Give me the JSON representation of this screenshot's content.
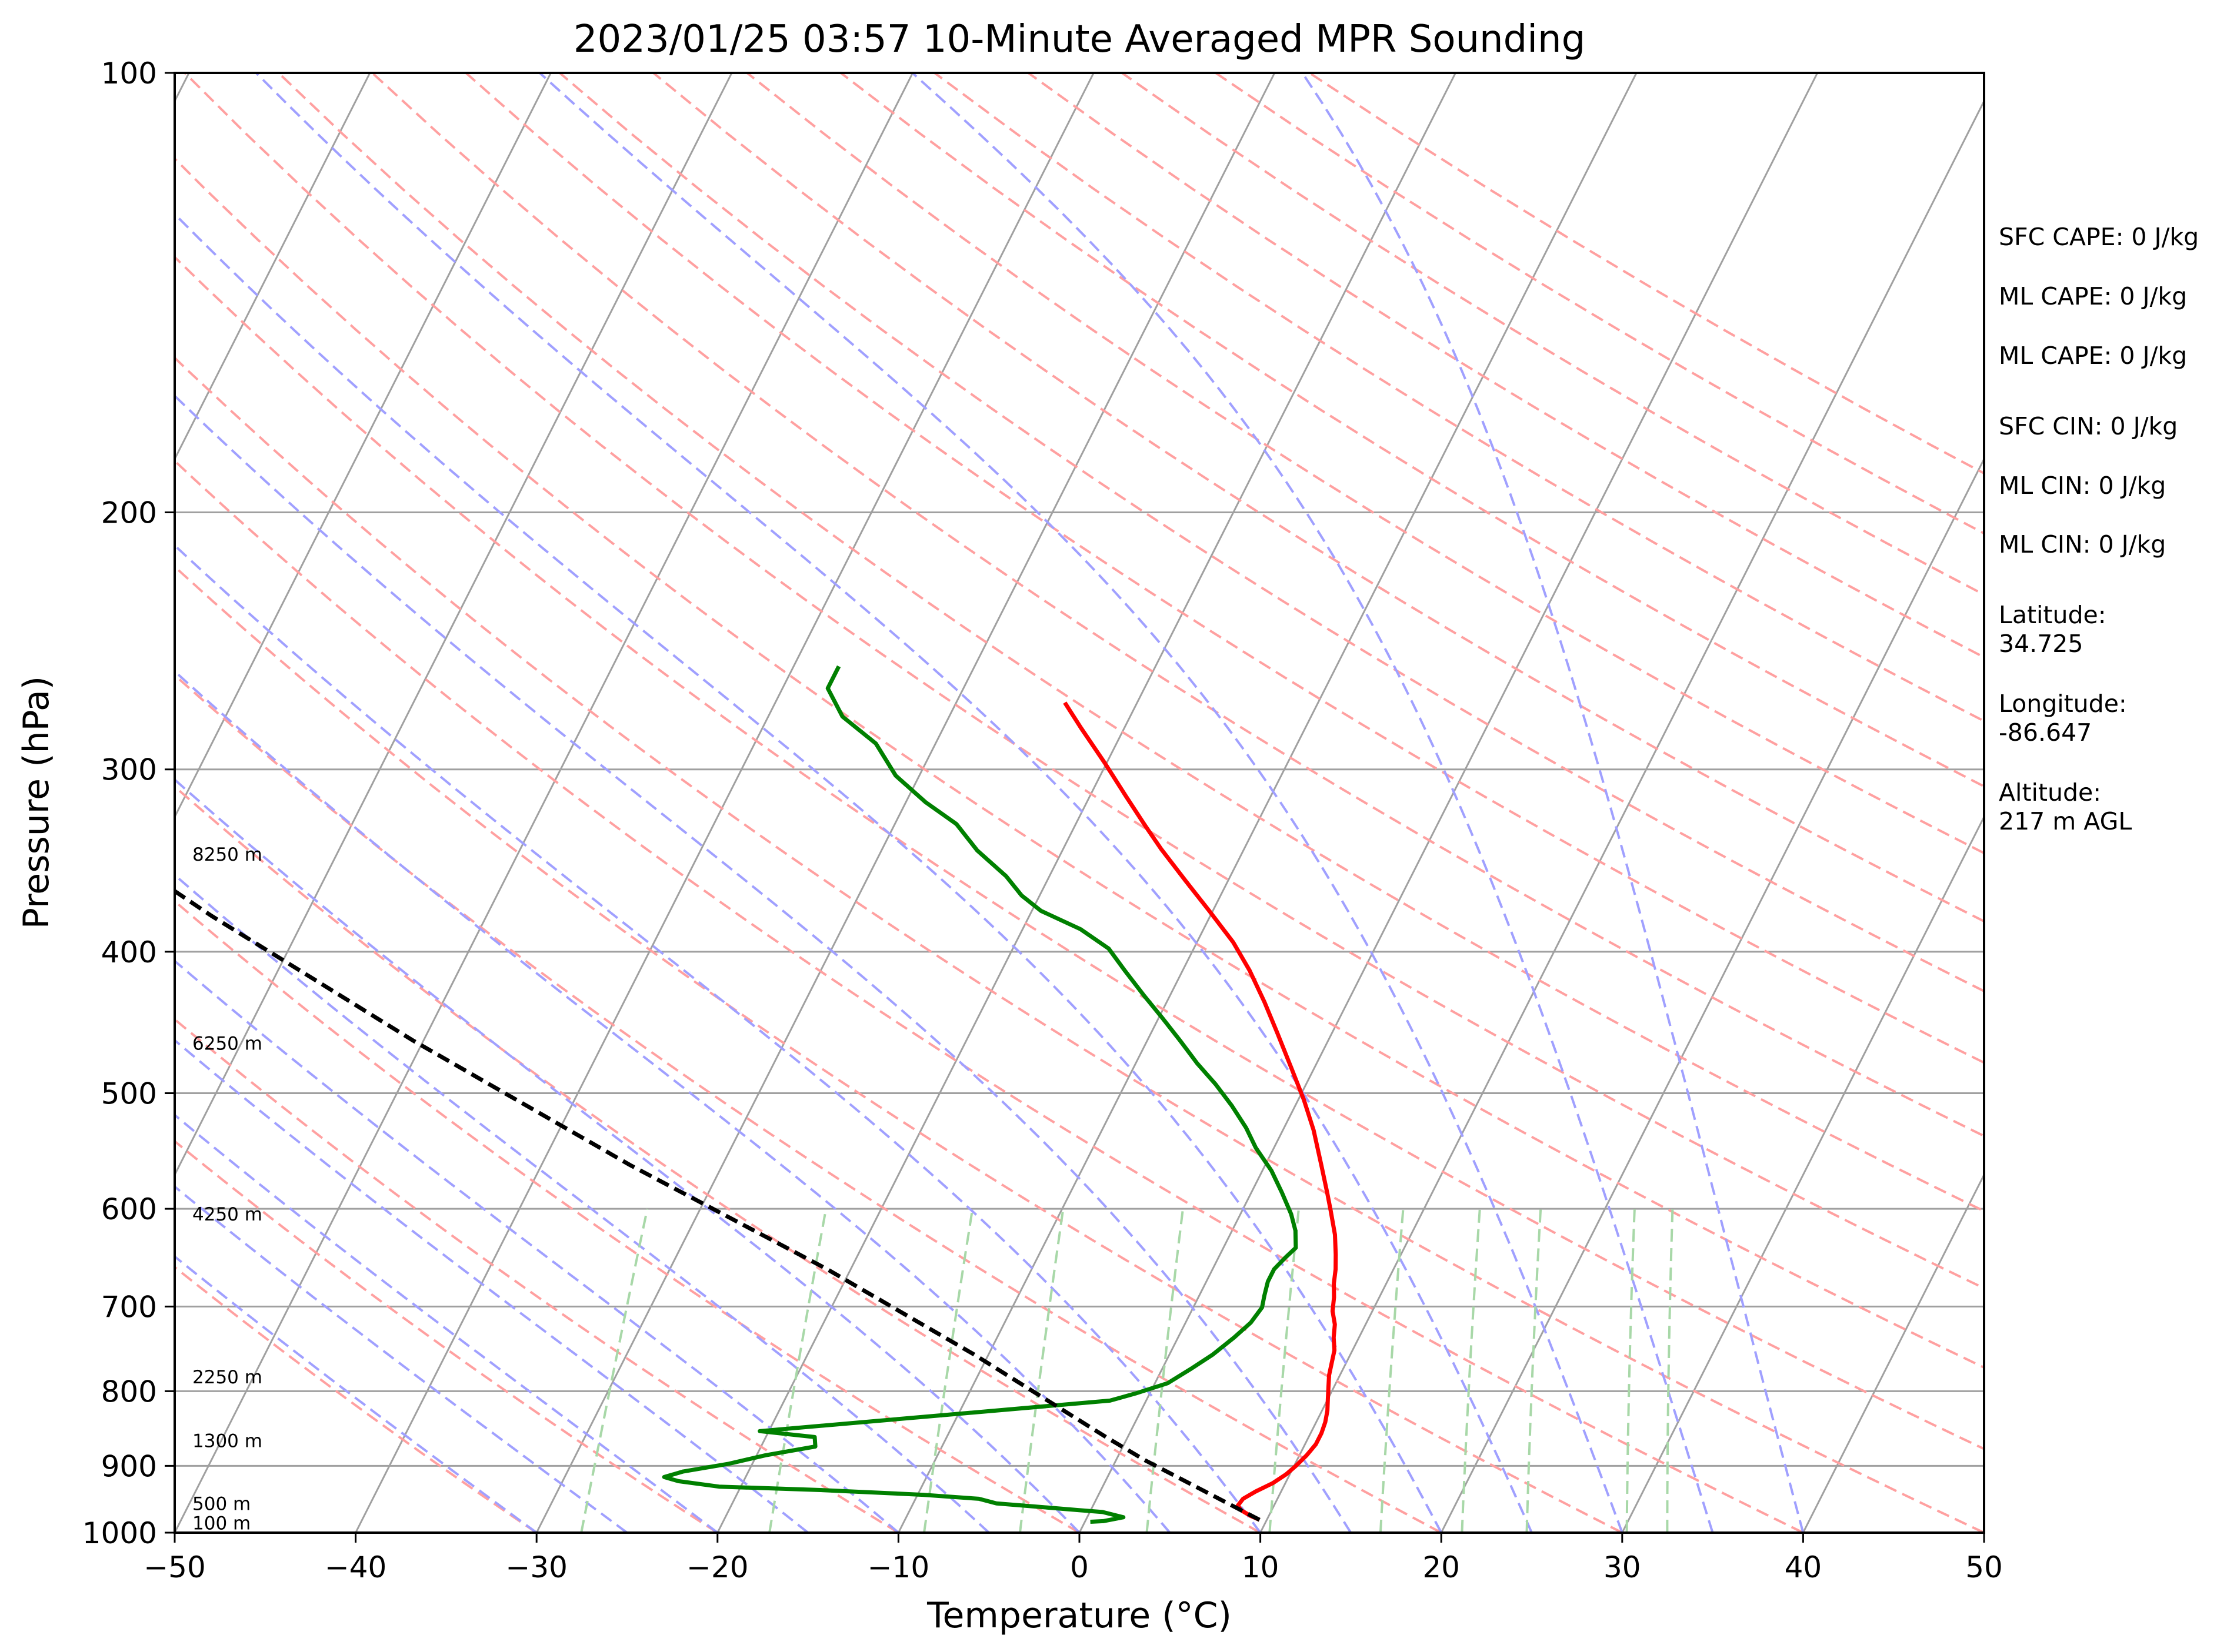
{
  "chart_data": {
    "type": "line",
    "title": "2023/01/25 03:57 10-Minute Averaged MPR Sounding",
    "xlabel": "Temperature (°C)",
    "ylabel": "Pressure (hPa)",
    "xlim": [
      -50,
      50
    ],
    "ylim": [
      1000,
      100
    ],
    "y_scale": "log",
    "skew": "skew-T",
    "grid": true,
    "x_ticks": [
      -50,
      -40,
      -30,
      -20,
      -10,
      0,
      10,
      20,
      30,
      40,
      50
    ],
    "x_tick_labels": [
      "−50",
      "−40",
      "−30",
      "−20",
      "−10",
      "0",
      "10",
      "20",
      "30",
      "40",
      "50"
    ],
    "y_ticks": [
      100,
      200,
      300,
      400,
      500,
      600,
      700,
      800,
      900,
      1000
    ],
    "y_tick_labels": [
      "100",
      "200",
      "300",
      "400",
      "500",
      "600",
      "700",
      "800",
      "900",
      "1000"
    ],
    "colors": {
      "temperature": "#ff0000",
      "dewpoint": "#008000",
      "parcel": "#000000",
      "isotherm": "#a0a0a0",
      "dry_adiabat": "#ffa0a0",
      "moist_adiabat": "#a0a0ff",
      "mixing_ratio": "#a8d8a8"
    },
    "height_labels": [
      {
        "p": 985,
        "text": "100 m"
      },
      {
        "p": 955,
        "text": "500 m"
      },
      {
        "p": 865,
        "text": "1300 m"
      },
      {
        "p": 782,
        "text": "2250 m"
      },
      {
        "p": 605,
        "text": "4250 m"
      },
      {
        "p": 462,
        "text": "6250 m"
      },
      {
        "p": 343,
        "text": "8250 m"
      }
    ],
    "series": [
      {
        "name": "",
        "role": "temperature",
        "points": [
          [
            9.6,
            980
          ],
          [
            9.0,
            974
          ],
          [
            8.3,
            965
          ],
          [
            8.0,
            958
          ],
          [
            8.1,
            948
          ],
          [
            8.6,
            937
          ],
          [
            9.3,
            925
          ],
          [
            9.8,
            912
          ],
          [
            10.1,
            900
          ],
          [
            10.4,
            885
          ],
          [
            10.6,
            870
          ],
          [
            10.6,
            855
          ],
          [
            10.5,
            840
          ],
          [
            10.3,
            825
          ],
          [
            10.0,
            810
          ],
          [
            9.7,
            795
          ],
          [
            9.4,
            780
          ],
          [
            9.2,
            765
          ],
          [
            9.0,
            750
          ],
          [
            8.6,
            735
          ],
          [
            8.3,
            720
          ],
          [
            7.8,
            705
          ],
          [
            7.5,
            690
          ],
          [
            7.1,
            675
          ],
          [
            6.8,
            660
          ],
          [
            6.4,
            645
          ],
          [
            5.8,
            625
          ],
          [
            4.9,
            602
          ],
          [
            4.2,
            585
          ],
          [
            3.1,
            560
          ],
          [
            1.7,
            530
          ],
          [
            0.3,
            505
          ],
          [
            -1.3,
            480
          ],
          [
            -3.0,
            455
          ],
          [
            -4.6,
            433
          ],
          [
            -6.3,
            412
          ],
          [
            -8.0,
            394
          ],
          [
            -10.2,
            375
          ],
          [
            -12.3,
            358
          ],
          [
            -14.6,
            340
          ],
          [
            -16.1,
            328
          ],
          [
            -18.0,
            313
          ],
          [
            -20.1,
            297
          ],
          [
            -22.4,
            281
          ],
          [
            -24.0,
            270
          ]
        ]
      },
      {
        "name": "",
        "role": "dewpoint",
        "points": [
          [
            0.3,
            983
          ],
          [
            1.0,
            982
          ],
          [
            2.0,
            976
          ],
          [
            0.7,
            968
          ],
          [
            -0.7,
            965
          ],
          [
            -3.0,
            960
          ],
          [
            -5.4,
            955
          ],
          [
            -6.5,
            948
          ],
          [
            -9.7,
            942
          ],
          [
            -15.5,
            935
          ],
          [
            -21.2,
            930
          ],
          [
            -23.6,
            922
          ],
          [
            -24.5,
            916
          ],
          [
            -23.6,
            908
          ],
          [
            -21.3,
            897
          ],
          [
            -19.5,
            885
          ],
          [
            -17.0,
            873
          ],
          [
            -17.3,
            860
          ],
          [
            -20.5,
            852
          ],
          [
            -2.0,
            812
          ],
          [
            -0.8,
            803
          ],
          [
            0.7,
            790
          ],
          [
            1.6,
            772
          ],
          [
            2.4,
            755
          ],
          [
            3.1,
            735
          ],
          [
            3.6,
            718
          ],
          [
            3.8,
            701
          ],
          [
            3.6,
            688
          ],
          [
            3.4,
            673
          ],
          [
            3.4,
            660
          ],
          [
            3.7,
            648
          ],
          [
            4.0,
            638
          ],
          [
            3.5,
            621
          ],
          [
            2.8,
            605
          ],
          [
            1.7,
            585
          ],
          [
            0.5,
            565
          ],
          [
            -1.0,
            545
          ],
          [
            -2.1,
            528
          ],
          [
            -3.5,
            510
          ],
          [
            -5.0,
            493
          ],
          [
            -6.6,
            477
          ],
          [
            -8.2,
            460
          ],
          [
            -9.8,
            444
          ],
          [
            -11.5,
            428
          ],
          [
            -13.2,
            412
          ],
          [
            -14.7,
            398
          ],
          [
            -16.8,
            386
          ],
          [
            -19.5,
            375
          ],
          [
            -21.0,
            366
          ],
          [
            -22.4,
            355
          ],
          [
            -24.7,
            341
          ],
          [
            -26.6,
            327
          ],
          [
            -28.9,
            316
          ],
          [
            -31.3,
            303
          ],
          [
            -33.3,
            288
          ],
          [
            -35.9,
            276
          ],
          [
            -37.5,
            264
          ],
          [
            -37.5,
            255
          ]
        ]
      },
      {
        "name": "",
        "role": "parcel",
        "points": [
          [
            9.6,
            980
          ],
          [
            1.6,
            892
          ],
          [
            -1.2,
            860
          ],
          [
            -10.8,
            755
          ],
          [
            -21.3,
            660
          ],
          [
            -35.1,
            560
          ],
          [
            -50.6,
            460
          ],
          [
            -65.2,
            378
          ],
          [
            -76.6,
            321
          ],
          [
            -84.8,
            286
          ],
          [
            -87.2,
            276
          ]
        ]
      }
    ],
    "stats": {
      "sfc_cape": "SFC CAPE: 0 J/kg",
      "ml_cape_1": "ML CAPE: 0 J/kg",
      "ml_cape_2": "ML CAPE: 0 J/kg",
      "sfc_cin": "SFC CIN: 0 J/kg",
      "ml_cin_1": "ML CIN: 0 J/kg",
      "ml_cin_2": "ML CIN: 0 J/kg",
      "latitude_label": "Latitude:",
      "latitude_value": "34.725",
      "longitude_label": "Longitude:",
      "longitude_value": "-86.647",
      "altitude_label": "Altitude:",
      "altitude_value": "217 m AGL"
    }
  }
}
